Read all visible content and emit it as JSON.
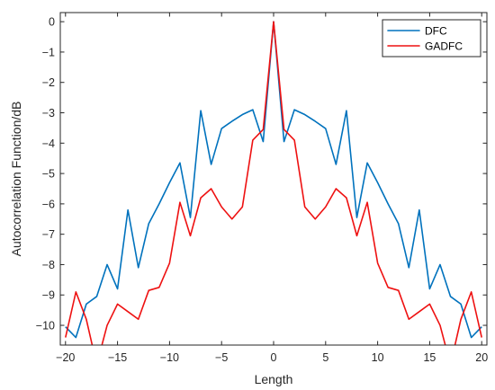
{
  "chart_data": {
    "type": "line",
    "xlabel": "Length",
    "ylabel": "Autocorrelation Function/dB",
    "xlim": [
      -20.5,
      20.5
    ],
    "ylim": [
      -10.65,
      0.3
    ],
    "xticks": [
      -20,
      -15,
      -10,
      -5,
      0,
      5,
      10,
      15,
      20
    ],
    "yticks": [
      0,
      -1,
      -2,
      -3,
      -4,
      -5,
      -6,
      -7,
      -8,
      -9,
      -10
    ],
    "grid": false,
    "legend_position": "top-right",
    "x": [
      -20,
      -19,
      -18,
      -17,
      -16,
      -15,
      -14,
      -13,
      -12,
      -11,
      -10,
      -9,
      -8,
      -7,
      -6,
      -5,
      -4,
      -3,
      -2,
      -1,
      0,
      1,
      2,
      3,
      4,
      5,
      6,
      7,
      8,
      9,
      10,
      11,
      12,
      13,
      14,
      15,
      16,
      17,
      18,
      19,
      20
    ],
    "series": [
      {
        "name": "DFC",
        "color": "#0072BD",
        "values": [
          -10.05,
          -10.4,
          -9.3,
          -9.05,
          -8.0,
          -8.8,
          -6.2,
          -8.1,
          -6.65,
          -6.0,
          -5.3,
          -4.65,
          -6.45,
          -2.93,
          -4.7,
          -3.52,
          -3.28,
          -3.06,
          -2.9,
          -3.95,
          0.0,
          -3.95,
          -2.9,
          -3.06,
          -3.28,
          -3.52,
          -4.7,
          -2.93,
          -6.45,
          -4.65,
          -5.3,
          -6.0,
          -6.65,
          -8.1,
          -6.2,
          -8.8,
          -8.0,
          -9.05,
          -9.3,
          -10.4,
          -10.05
        ]
      },
      {
        "name": "GADFC",
        "color": "#EE1111",
        "values": [
          -10.4,
          -8.9,
          -9.8,
          -11.3,
          -10.0,
          -9.3,
          -9.55,
          -9.8,
          -8.85,
          -8.75,
          -7.95,
          -5.95,
          -7.05,
          -5.8,
          -5.5,
          -6.1,
          -6.5,
          -6.1,
          -3.9,
          -3.55,
          0.0,
          -3.55,
          -3.9,
          -6.1,
          -6.5,
          -6.1,
          -5.5,
          -5.8,
          -7.05,
          -5.95,
          -7.95,
          -8.75,
          -8.85,
          -9.8,
          -9.55,
          -9.3,
          -10.0,
          -11.3,
          -9.8,
          -8.9,
          -10.4
        ]
      }
    ]
  }
}
